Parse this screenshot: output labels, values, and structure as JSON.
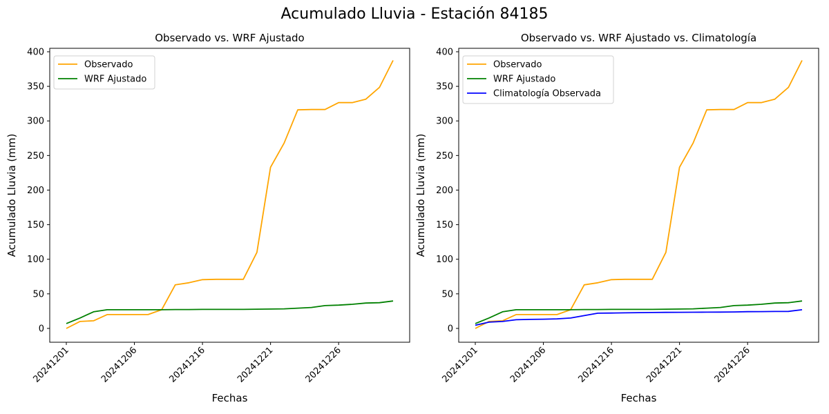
{
  "figure": {
    "suptitle": "Acumulado Lluvia - Estación 84185"
  },
  "colors": {
    "observado": "#ffa500",
    "wrf": "#008000",
    "climatologia": "#0000ff"
  },
  "chart_data": [
    {
      "type": "line",
      "title": "Observado vs. WRF Ajustado",
      "xlabel": "Fechas",
      "ylabel": "Acumulado Lluvia (mm)",
      "ylim": [
        -20,
        405
      ],
      "yticks": [
        0,
        50,
        100,
        150,
        200,
        250,
        300,
        350,
        400
      ],
      "xticks": [
        "20241201",
        "20241206",
        "20241216",
        "20241221",
        "20241226"
      ],
      "legend_position": "upper-left",
      "x_count": 25,
      "series": [
        {
          "name": "Observado",
          "color": "#ffa500",
          "values": [
            0,
            10,
            11,
            20,
            20,
            20,
            20,
            27,
            63,
            66,
            70.5,
            71,
            71,
            71,
            110,
            233,
            268,
            316,
            316.5,
            316.5,
            326.5,
            326.5,
            331.5,
            348.5,
            387.5
          ]
        },
        {
          "name": "WRF Ajustado",
          "color": "#008000",
          "values": [
            7,
            15,
            24,
            27,
            27,
            27,
            27,
            27,
            27.3,
            27.3,
            27.5,
            27.5,
            27.5,
            27.5,
            27.8,
            28,
            28.3,
            29.3,
            30.3,
            33,
            33.7,
            34.9,
            36.7,
            37.2,
            39.7
          ]
        }
      ]
    },
    {
      "type": "line",
      "title": "Observado vs. WRF Ajustado vs. Climatología",
      "xlabel": "Fechas",
      "ylabel": "Acumulado Lluvia (mm)",
      "ylim": [
        -20,
        405
      ],
      "yticks": [
        0,
        50,
        100,
        150,
        200,
        250,
        300,
        350,
        400
      ],
      "xticks": [
        "20241201",
        "20241206",
        "20241216",
        "20241221",
        "20241226"
      ],
      "legend_position": "upper-left",
      "x_count": 25,
      "series": [
        {
          "name": "Observado",
          "color": "#ffa500",
          "values": [
            0,
            10,
            11,
            20,
            20,
            20,
            20,
            27,
            63,
            66,
            70.5,
            71,
            71,
            71,
            110,
            233,
            268,
            316,
            316.5,
            316.5,
            326.5,
            326.5,
            331.5,
            348.5,
            387.5
          ]
        },
        {
          "name": "WRF Ajustado",
          "color": "#008000",
          "values": [
            7,
            15,
            24,
            27,
            27,
            27,
            27,
            27,
            27.3,
            27.3,
            27.5,
            27.5,
            27.5,
            27.5,
            27.8,
            28,
            28.3,
            29.3,
            30.3,
            33,
            33.7,
            34.9,
            36.7,
            37.2,
            39.7
          ]
        },
        {
          "name": "Climatología Observada",
          "color": "#0000ff",
          "values": [
            4.5,
            9,
            10,
            12.5,
            13,
            13.3,
            13.8,
            15,
            18.5,
            22,
            22.2,
            22.5,
            22.8,
            23,
            23.2,
            23.3,
            23.4,
            23.5,
            23.6,
            23.8,
            24.2,
            24.3,
            24.5,
            24.6,
            27
          ]
        }
      ]
    }
  ]
}
